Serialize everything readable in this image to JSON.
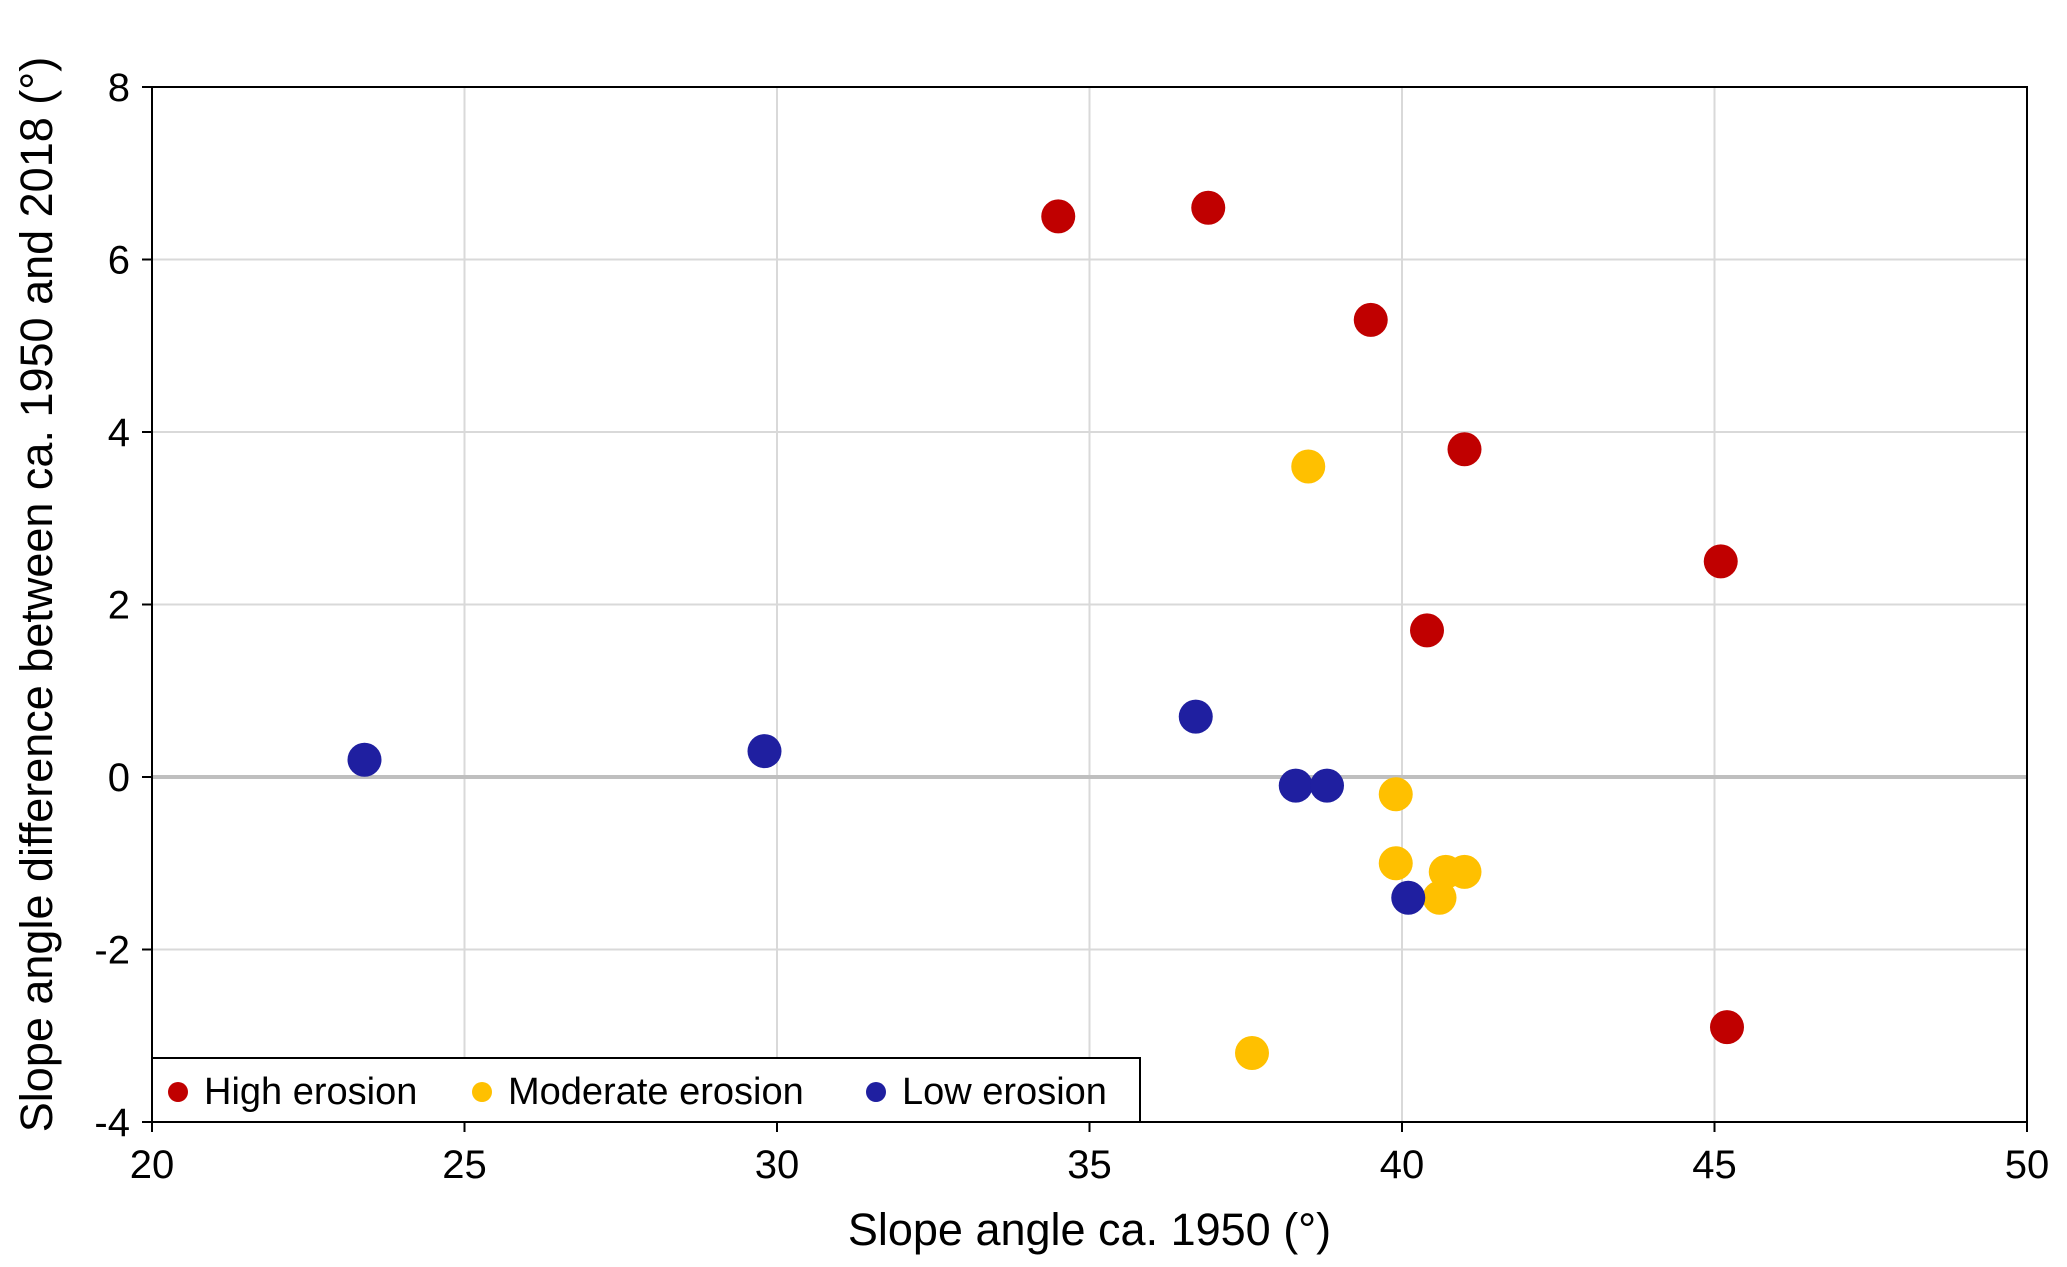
{
  "chart_data": {
    "type": "scatter",
    "xlabel": "Slope angle ca. 1950 (°)",
    "ylabel": "Slope angle difference between ca. 1950 and 2018 (°)",
    "xlim": [
      20,
      50
    ],
    "ylim": [
      -4,
      8
    ],
    "xticks": [
      20,
      25,
      30,
      35,
      40,
      45,
      50
    ],
    "yticks": [
      -4,
      -2,
      0,
      2,
      4,
      6,
      8
    ],
    "grid": true,
    "zero_line": true,
    "legend_position": "bottom-left",
    "series": [
      {
        "name": "High erosion",
        "color": "#c00000",
        "points": [
          {
            "x": 34.5,
            "y": 6.5
          },
          {
            "x": 36.9,
            "y": 6.6
          },
          {
            "x": 39.5,
            "y": 5.3
          },
          {
            "x": 41.0,
            "y": 3.8
          },
          {
            "x": 45.1,
            "y": 2.5
          },
          {
            "x": 40.4,
            "y": 1.7
          },
          {
            "x": 45.2,
            "y": -2.9
          }
        ]
      },
      {
        "name": "Moderate erosion",
        "color": "#ffc000",
        "points": [
          {
            "x": 38.5,
            "y": 3.6
          },
          {
            "x": 39.9,
            "y": -0.2
          },
          {
            "x": 39.9,
            "y": -1.0
          },
          {
            "x": 40.7,
            "y": -1.1
          },
          {
            "x": 41.0,
            "y": -1.1
          },
          {
            "x": 40.6,
            "y": -1.4
          },
          {
            "x": 37.6,
            "y": -3.2
          }
        ]
      },
      {
        "name": "Low erosion",
        "color": "#1f1fa0",
        "points": [
          {
            "x": 23.4,
            "y": 0.2
          },
          {
            "x": 29.8,
            "y": 0.3
          },
          {
            "x": 36.7,
            "y": 0.7
          },
          {
            "x": 38.3,
            "y": -0.1
          },
          {
            "x": 38.8,
            "y": -0.1
          },
          {
            "x": 40.1,
            "y": -1.4
          }
        ]
      }
    ]
  }
}
